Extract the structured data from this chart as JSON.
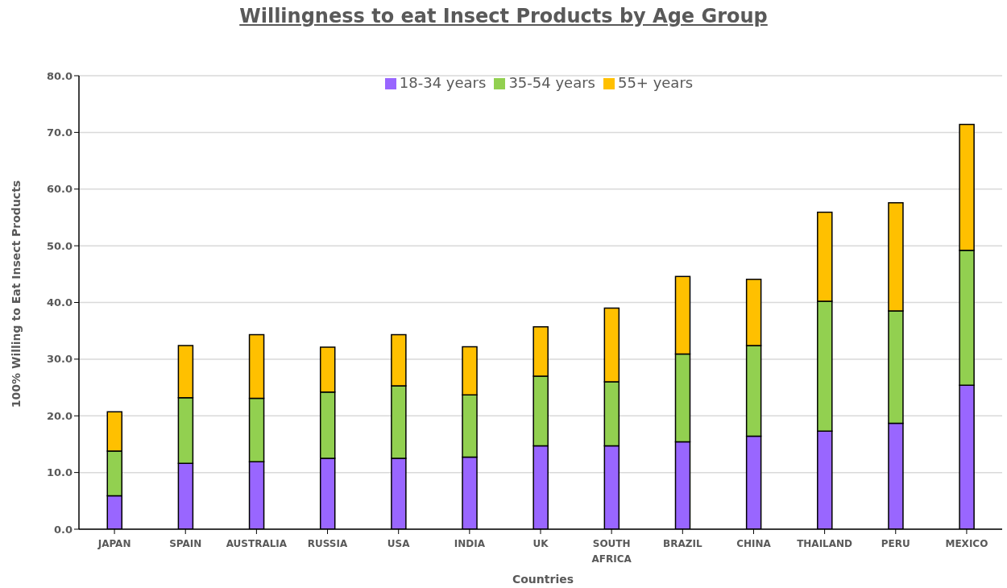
{
  "chart_data": {
    "type": "bar",
    "title": "Willingness to eat Insect Products by Age Group",
    "xlabel": "Countries",
    "ylabel": "100% Willing to Eat Insect Products",
    "categories": [
      "JAPAN",
      "SPAIN",
      "AUSTRALIA",
      "RUSSIA",
      "USA",
      "INDIA",
      "UK",
      "SOUTH AFRICA",
      "BRAZIL",
      "CHINA",
      "THAILAND",
      "PERU",
      "MEXICO"
    ],
    "series": [
      {
        "name": "18-34 years",
        "color": "#9966ff",
        "values": [
          5.9,
          11.6,
          11.9,
          12.5,
          12.5,
          12.7,
          14.7,
          14.7,
          15.4,
          16.4,
          17.3,
          18.7,
          25.4
        ]
      },
      {
        "name": "35-54 years",
        "color": "#92d050",
        "values": [
          7.9,
          11.6,
          11.2,
          11.7,
          12.8,
          11.0,
          12.3,
          11.3,
          15.5,
          16.0,
          22.9,
          19.8,
          23.8
        ]
      },
      {
        "name": "55+ years",
        "color": "#ffc000",
        "values": [
          6.9,
          9.2,
          11.2,
          7.9,
          9.0,
          8.5,
          8.7,
          13.0,
          13.7,
          11.7,
          15.7,
          19.1,
          22.2
        ]
      }
    ],
    "stacked": true,
    "ylim": [
      0,
      80
    ],
    "yticks": [
      {
        "value": 0,
        "label": "0.0"
      },
      {
        "value": 10,
        "label": "10.0"
      },
      {
        "value": 20,
        "label": "20.0"
      },
      {
        "value": 30,
        "label": "30.0"
      },
      {
        "value": 40,
        "label": "40.0"
      },
      {
        "value": 50,
        "label": "50.0"
      },
      {
        "value": 60,
        "label": "60.0"
      },
      {
        "value": 70,
        "label": "70.0"
      },
      {
        "value": 80,
        "label": "80.0"
      }
    ],
    "grid": "y",
    "legend": "top"
  }
}
